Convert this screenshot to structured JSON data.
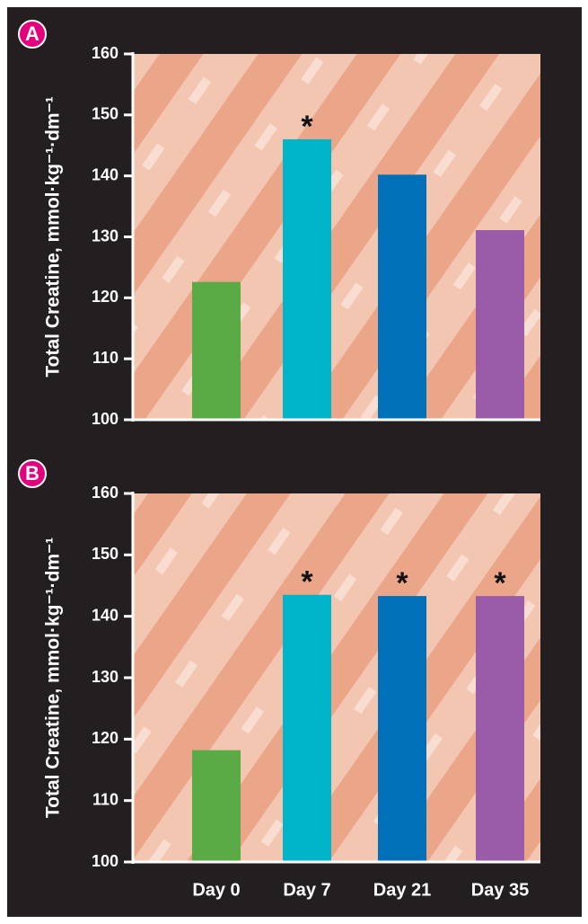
{
  "chart_data": [
    {
      "type": "bar",
      "label": "A",
      "ylabel": "Total Creatine, mmol·kg⁻¹·dm⁻¹",
      "categories": [
        null,
        null,
        null,
        null
      ],
      "values": [
        122.6,
        146,
        140.2,
        131.1
      ],
      "colors": [
        "#5aab45",
        "#00b4c9",
        "#0071b8",
        "#9a5ca8"
      ],
      "markers": [
        null,
        "*",
        null,
        null
      ],
      "ylim": [
        100,
        160
      ],
      "yticks": [
        100,
        110,
        120,
        130,
        140,
        150,
        160
      ]
    },
    {
      "type": "bar",
      "label": "B",
      "ylabel": "Total Creatine, mmol·kg⁻¹·dm⁻¹",
      "categories": [
        "Day 0",
        "Day 7",
        "Day 21",
        "Day 35"
      ],
      "values": [
        118.2,
        143.5,
        143.3,
        143.3
      ],
      "colors": [
        "#5aab45",
        "#00b4c9",
        "#0071b8",
        "#9a5ca8"
      ],
      "markers": [
        null,
        "*",
        "*",
        "*"
      ],
      "ylim": [
        100,
        160
      ],
      "yticks": [
        100,
        110,
        120,
        130,
        140,
        150,
        160
      ]
    }
  ]
}
